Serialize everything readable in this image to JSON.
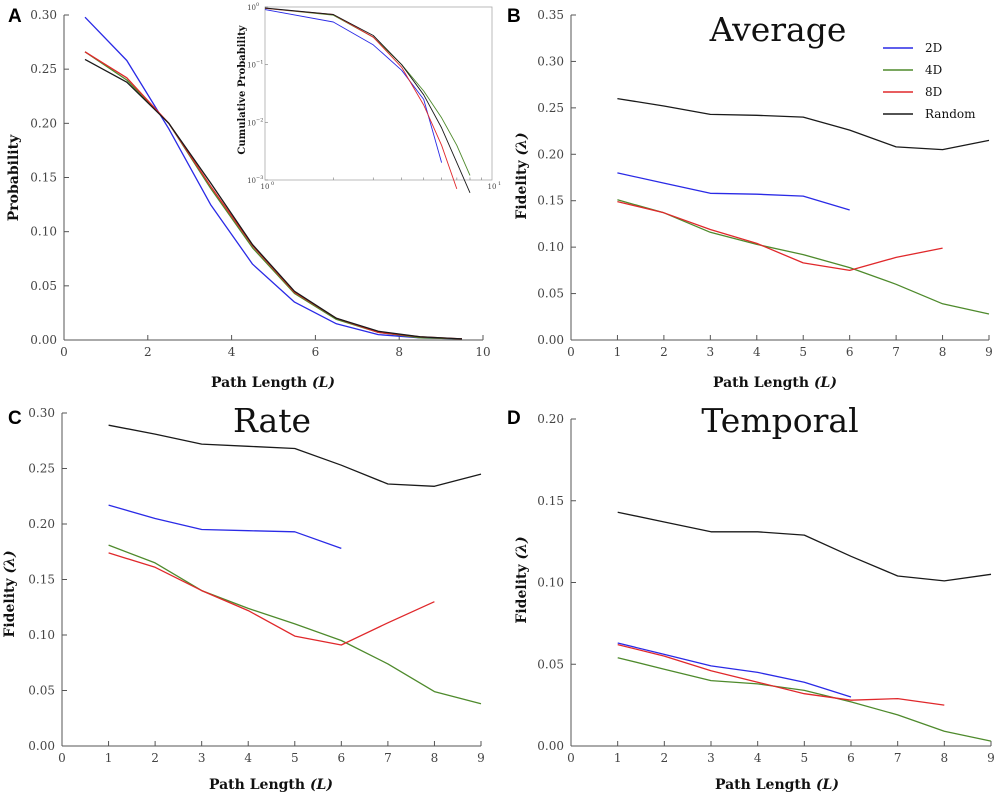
{
  "colors": {
    "2D": "#2a2ae6",
    "4D": "#4e8a2c",
    "8D": "#e0282b",
    "Random": "#1a1a1a"
  },
  "chart_data": [
    {
      "panel": "A",
      "type": "line",
      "title": "",
      "xlabel": "Path Length",
      "xlabel_var": "(L)",
      "ylabel": "Probability",
      "xlim": [
        0,
        10
      ],
      "ylim": [
        0,
        0.3
      ],
      "xticks": [
        "0",
        "2",
        "4",
        "6",
        "8",
        "10"
      ],
      "yticks": [
        "0.00",
        "0.05",
        "0.10",
        "0.15",
        "0.20",
        "0.25",
        "0.30"
      ],
      "x": [
        0.5,
        1.5,
        2.5,
        3.5,
        4.5,
        5.5,
        6.5,
        7.5,
        8.5,
        9.5
      ],
      "series": [
        {
          "name": "2D",
          "color": "#2a2ae6",
          "values": [
            0.298,
            0.258,
            0.195,
            0.125,
            0.07,
            0.035,
            0.015,
            0.005,
            0.002,
            0.001
          ]
        },
        {
          "name": "4D",
          "color": "#4e8a2c",
          "values": [
            0.266,
            0.24,
            0.2,
            0.14,
            0.085,
            0.043,
            0.019,
            0.007,
            0.002,
            0.001
          ]
        },
        {
          "name": "8D",
          "color": "#e0282b",
          "values": [
            0.266,
            0.242,
            0.2,
            0.142,
            0.087,
            0.044,
            0.02,
            0.007,
            0.003,
            0.001
          ]
        },
        {
          "name": "Random",
          "color": "#1a1a1a",
          "values": [
            0.259,
            0.238,
            0.2,
            0.145,
            0.088,
            0.045,
            0.02,
            0.008,
            0.003,
            0.001
          ]
        }
      ],
      "inset": {
        "type": "line",
        "scale": "log-log",
        "ylabel": "Cumulative Probability",
        "xticks": [
          "10",
          "10"
        ],
        "xtick_exps": [
          "0",
          "1"
        ],
        "yticks": [
          "10",
          "10",
          "10",
          "10"
        ],
        "ytick_exps": [
          "0",
          "−1",
          "−2",
          "−3"
        ],
        "x": [
          1,
          2,
          3,
          4,
          5,
          6,
          7,
          8,
          9
        ],
        "series": [
          {
            "name": "2D",
            "color": "#2a2ae6",
            "values": [
              0.9,
              0.55,
              0.22,
              0.08,
              0.025,
              0.002
            ]
          },
          {
            "name": "4D",
            "color": "#4e8a2c",
            "values": [
              0.95,
              0.72,
              0.3,
              0.1,
              0.035,
              0.012,
              0.004,
              0.0012
            ]
          },
          {
            "name": "8D",
            "color": "#e0282b",
            "values": [
              0.95,
              0.74,
              0.3,
              0.09,
              0.02,
              0.004,
              0.0007
            ]
          },
          {
            "name": "Random",
            "color": "#1a1a1a",
            "values": [
              0.96,
              0.74,
              0.32,
              0.1,
              0.03,
              0.008,
              0.002,
              0.0006
            ]
          }
        ]
      }
    },
    {
      "panel": "B",
      "type": "line",
      "title": "Average",
      "xlabel": "Path Length",
      "xlabel_var": "(L)",
      "ylabel": "Fidelity",
      "ylabel_var": "(λ)",
      "xlim": [
        0,
        9
      ],
      "ylim": [
        0,
        0.35
      ],
      "xticks": [
        "0",
        "1",
        "2",
        "3",
        "4",
        "5",
        "6",
        "7",
        "8",
        "9"
      ],
      "yticks": [
        "0.00",
        "0.05",
        "0.10",
        "0.15",
        "0.20",
        "0.25",
        "0.30",
        "0.35"
      ],
      "legend": {
        "position": "top-right",
        "entries": [
          "2D",
          "4D",
          "8D",
          "Random"
        ]
      },
      "series": [
        {
          "name": "2D",
          "color": "#2a2ae6",
          "x": [
            1,
            2,
            3,
            4,
            5,
            6
          ],
          "values": [
            0.18,
            0.169,
            0.158,
            0.157,
            0.155,
            0.14
          ]
        },
        {
          "name": "4D",
          "color": "#4e8a2c",
          "x": [
            1,
            2,
            3,
            4,
            5,
            6,
            7,
            8,
            9
          ],
          "values": [
            0.151,
            0.137,
            0.116,
            0.103,
            0.092,
            0.078,
            0.06,
            0.039,
            0.028
          ]
        },
        {
          "name": "8D",
          "color": "#e0282b",
          "x": [
            1,
            2,
            3,
            4,
            5,
            6,
            7,
            8
          ],
          "values": [
            0.149,
            0.137,
            0.119,
            0.104,
            0.083,
            0.075,
            0.089,
            0.099
          ]
        },
        {
          "name": "Random",
          "color": "#1a1a1a",
          "x": [
            1,
            2,
            3,
            4,
            5,
            6,
            7,
            8,
            9
          ],
          "values": [
            0.26,
            0.252,
            0.243,
            0.242,
            0.24,
            0.226,
            0.208,
            0.205,
            0.215
          ]
        }
      ]
    },
    {
      "panel": "C",
      "type": "line",
      "title": "Rate",
      "xlabel": "Path Length",
      "xlabel_var": "(L)",
      "ylabel": "Fidelity",
      "ylabel_var": "(λ)",
      "xlim": [
        0,
        9
      ],
      "ylim": [
        0,
        0.3
      ],
      "xticks": [
        "0",
        "1",
        "2",
        "3",
        "4",
        "5",
        "6",
        "7",
        "8",
        "9"
      ],
      "yticks": [
        "0.00",
        "0.05",
        "0.10",
        "0.15",
        "0.20",
        "0.25",
        "0.30"
      ],
      "series": [
        {
          "name": "2D",
          "color": "#2a2ae6",
          "x": [
            1,
            2,
            3,
            4,
            5,
            6
          ],
          "values": [
            0.217,
            0.205,
            0.195,
            0.194,
            0.193,
            0.178
          ]
        },
        {
          "name": "4D",
          "color": "#4e8a2c",
          "x": [
            1,
            2,
            3,
            4,
            5,
            6,
            7,
            8,
            9
          ],
          "values": [
            0.181,
            0.165,
            0.14,
            0.124,
            0.11,
            0.095,
            0.074,
            0.049,
            0.038
          ]
        },
        {
          "name": "8D",
          "color": "#e0282b",
          "x": [
            1,
            2,
            3,
            4,
            5,
            6,
            7,
            8
          ],
          "values": [
            0.174,
            0.161,
            0.14,
            0.122,
            0.099,
            0.091,
            0.111,
            0.13
          ]
        },
        {
          "name": "Random",
          "color": "#1a1a1a",
          "x": [
            1,
            2,
            3,
            4,
            5,
            6,
            7,
            8,
            9
          ],
          "values": [
            0.289,
            0.281,
            0.272,
            0.27,
            0.268,
            0.253,
            0.236,
            0.234,
            0.245
          ]
        }
      ]
    },
    {
      "panel": "D",
      "type": "line",
      "title": "Temporal",
      "xlabel": "Path Length",
      "xlabel_var": "(L)",
      "ylabel": "Fidelity",
      "ylabel_var": "(λ)",
      "xlim": [
        0,
        9
      ],
      "ylim": [
        0,
        0.2
      ],
      "xticks": [
        "0",
        "1",
        "2",
        "3",
        "4",
        "5",
        "6",
        "7",
        "8",
        "9"
      ],
      "yticks": [
        "0.00",
        "0.05",
        "0.10",
        "0.15",
        "0.20"
      ],
      "series": [
        {
          "name": "2D",
          "color": "#2a2ae6",
          "x": [
            1,
            2,
            3,
            4,
            5,
            6
          ],
          "values": [
            0.063,
            0.056,
            0.049,
            0.045,
            0.039,
            0.03
          ]
        },
        {
          "name": "4D",
          "color": "#4e8a2c",
          "x": [
            1,
            2,
            3,
            4,
            5,
            6,
            7,
            8,
            9
          ],
          "values": [
            0.054,
            0.047,
            0.04,
            0.038,
            0.034,
            0.027,
            0.019,
            0.009,
            0.003
          ]
        },
        {
          "name": "8D",
          "color": "#e0282b",
          "x": [
            1,
            2,
            3,
            4,
            5,
            6,
            7,
            8
          ],
          "values": [
            0.062,
            0.055,
            0.046,
            0.039,
            0.032,
            0.028,
            0.029,
            0.025
          ]
        },
        {
          "name": "Random",
          "color": "#1a1a1a",
          "x": [
            1,
            2,
            3,
            4,
            5,
            6,
            7,
            8,
            9
          ],
          "values": [
            0.143,
            0.137,
            0.131,
            0.131,
            0.129,
            0.116,
            0.104,
            0.101,
            0.105
          ]
        }
      ]
    }
  ]
}
